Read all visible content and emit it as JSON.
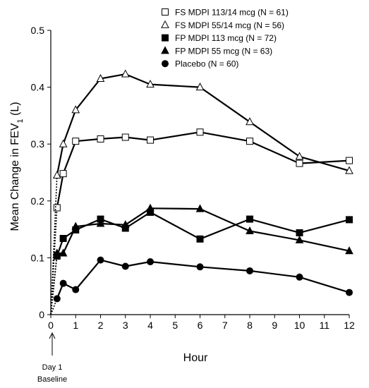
{
  "chart_data": {
    "type": "line",
    "xlabel": "Hour",
    "ylabel": "Mean Change in FEV",
    "ylabel_subscript": "1",
    "ylabel_suffix": " (L)",
    "xlim": [
      0,
      12
    ],
    "ylim": [
      0,
      0.5
    ],
    "x_ticks": [
      "0",
      "1",
      "2",
      "3",
      "4",
      "5",
      "6",
      "7",
      "8",
      "9",
      "10",
      "11",
      "12"
    ],
    "y_ticks": [
      "0",
      "0.1",
      "0.2",
      "0.3",
      "0.4",
      "0.5"
    ],
    "grid": false,
    "legend_position": "top-right",
    "baseline_annotation": [
      "Day 1",
      "Baseline"
    ],
    "series": [
      {
        "name": "FS MDPI 113/14 mcg (N = 61)",
        "marker": "square-open",
        "x": [
          0,
          0.25,
          0.5,
          1,
          2,
          3,
          4,
          6,
          8,
          10,
          12
        ],
        "y": [
          0,
          0.188,
          0.248,
          0.305,
          0.309,
          0.312,
          0.307,
          0.321,
          0.305,
          0.266,
          0.271
        ]
      },
      {
        "name": "FS MDPI 55/14 mcg (N = 56)",
        "marker": "triangle-open",
        "x": [
          0,
          0.25,
          0.5,
          1,
          2,
          3,
          4,
          6,
          8,
          10,
          12
        ],
        "y": [
          0,
          0.245,
          0.3,
          0.36,
          0.415,
          0.423,
          0.405,
          0.4,
          0.339,
          0.278,
          0.253
        ]
      },
      {
        "name": "FP MDPI 113 mcg (N = 72)",
        "marker": "square-filled",
        "x": [
          0,
          0.25,
          0.5,
          1,
          2,
          3,
          4,
          6,
          8,
          10,
          12
        ],
        "y": [
          0,
          0.103,
          0.134,
          0.149,
          0.168,
          0.152,
          0.18,
          0.133,
          0.168,
          0.144,
          0.167
        ]
      },
      {
        "name": "FP MDPI 55 mcg (N = 63)",
        "marker": "triangle-filled",
        "x": [
          0,
          0.25,
          0.5,
          1,
          2,
          3,
          4,
          6,
          8,
          10,
          12
        ],
        "y": [
          0,
          0.108,
          0.108,
          0.155,
          0.16,
          0.158,
          0.187,
          0.186,
          0.147,
          0.131,
          0.112
        ]
      },
      {
        "name": "Placebo (N = 60)",
        "marker": "circle-filled",
        "x": [
          0,
          0.25,
          0.5,
          1,
          2,
          3,
          4,
          6,
          8,
          10,
          12
        ],
        "y": [
          0,
          0.028,
          0.055,
          0.044,
          0.096,
          0.085,
          0.093,
          0.084,
          0.077,
          0.066,
          0.039
        ]
      }
    ]
  }
}
